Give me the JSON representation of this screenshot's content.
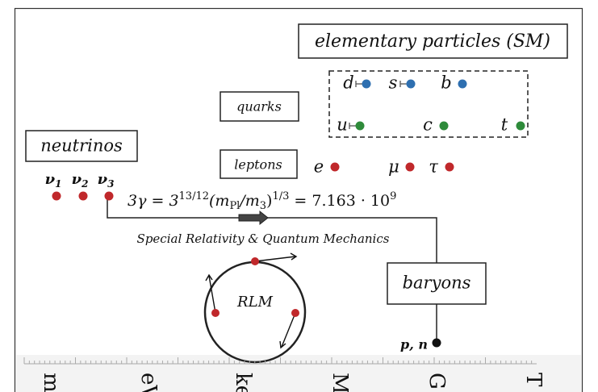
{
  "sm_box": {
    "title": "elementary particles (SM)"
  },
  "quarks": {
    "label": "quarks",
    "particles": [
      {
        "symbol": "d"
      },
      {
        "symbol": "s"
      },
      {
        "symbol": "b"
      },
      {
        "symbol": "u"
      },
      {
        "symbol": "c"
      },
      {
        "symbol": "t"
      }
    ]
  },
  "leptons": {
    "label": "leptons",
    "particles": [
      {
        "symbol": "e"
      },
      {
        "symbol": "μ"
      },
      {
        "symbol": "τ"
      }
    ]
  },
  "neutrinos": {
    "label": "neutrinos",
    "particles": [
      {
        "symbol": "ν",
        "index": "1"
      },
      {
        "symbol": "ν",
        "index": "2"
      },
      {
        "symbol": "ν",
        "index": "3"
      }
    ]
  },
  "formula": {
    "parts": [
      "3γ = 3",
      "13/12",
      "(m",
      "Pl",
      "/m",
      "3",
      ")",
      "1/3",
      " = 7.163 · 10",
      "9"
    ]
  },
  "arrow_caption": "Special Relativity & Quantum Mechanics",
  "rlm": {
    "label": "RLM"
  },
  "baryons": {
    "label": "baryons",
    "particles": "p, n"
  },
  "scale_labels": [
    "m",
    "eV",
    "ke",
    "M",
    "G",
    "T"
  ]
}
